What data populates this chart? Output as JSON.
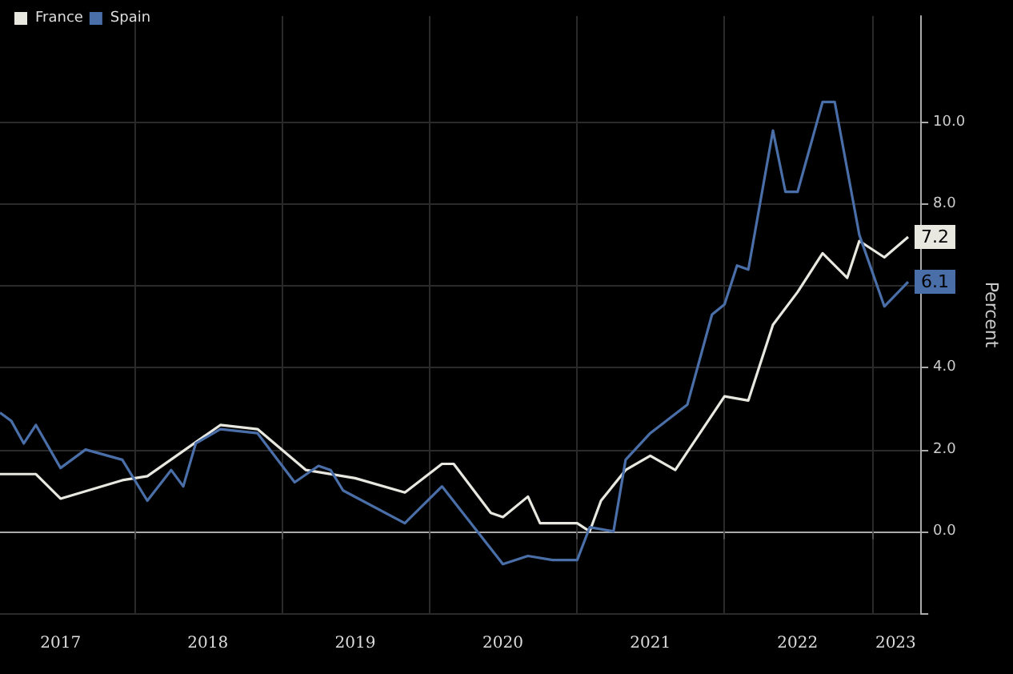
{
  "chart_data": {
    "type": "line",
    "ylabel": "Percent",
    "xlim": [
      "2017-02",
      "2023-05"
    ],
    "xticks": [
      {
        "value": "2017-07",
        "label": "2017"
      },
      {
        "value": "2018-01",
        "label": null
      },
      {
        "value": "2018-07",
        "label": "2018"
      },
      {
        "value": "2019-01",
        "label": null
      },
      {
        "value": "2019-07",
        "label": "2019"
      },
      {
        "value": "2020-01",
        "label": null
      },
      {
        "value": "2020-07",
        "label": "2020"
      },
      {
        "value": "2021-01",
        "label": null
      },
      {
        "value": "2021-07",
        "label": "2021"
      },
      {
        "value": "2022-01",
        "label": null
      },
      {
        "value": "2022-07",
        "label": "2022"
      },
      {
        "value": "2023-01",
        "label": null
      },
      {
        "value": "2023-03",
        "label": "2023"
      }
    ],
    "ylim": [
      -2,
      12.6
    ],
    "yticks": [
      {
        "value": -2,
        "label": null
      },
      {
        "value": 0,
        "label": "0.0"
      },
      {
        "value": 2,
        "label": "2.0"
      },
      {
        "value": 4,
        "label": "4.0"
      },
      {
        "value": 6,
        "label": null
      },
      {
        "value": 8,
        "label": "8.0"
      },
      {
        "value": 10,
        "label": "10.0"
      }
    ],
    "grid": true,
    "legend": "top left",
    "marker": "none",
    "line_style": "solid",
    "series": [
      {
        "name": "France",
        "color": "#e8e8e0",
        "x": [
          "2017-02",
          "2017-05",
          "2017-07",
          "2017-12",
          "2018-02",
          "2018-08",
          "2018-11",
          "2019-03",
          "2019-07",
          "2019-11",
          "2020-02",
          "2020-03",
          "2020-06",
          "2020-07",
          "2020-09",
          "2020-10",
          "2021-01",
          "2021-02",
          "2021-03",
          "2021-05",
          "2021-07",
          "2021-09",
          "2022-01",
          "2022-03",
          "2022-05",
          "2022-07",
          "2022-09",
          "2022-11",
          "2022-12",
          "2023-02",
          "2023-04"
        ],
        "values": [
          1.4,
          1.4,
          0.8,
          1.25,
          1.35,
          2.6,
          2.5,
          1.5,
          1.3,
          0.95,
          1.65,
          1.65,
          0.45,
          0.35,
          0.85,
          0.2,
          0.2,
          0,
          0.75,
          1.5,
          1.85,
          1.5,
          3.3,
          3.2,
          5.05,
          5.85,
          6.8,
          6.2,
          7.1,
          6.7,
          7.2
        ],
        "value_labels": [
          null,
          null,
          null,
          null,
          null,
          null,
          null,
          null,
          null,
          null,
          null,
          null,
          null,
          null,
          null,
          null,
          null,
          null,
          null,
          null,
          null,
          null,
          null,
          null,
          null,
          null,
          null,
          null,
          null,
          null,
          "7.2"
        ]
      },
      {
        "name": "Spain",
        "color": "#4a6fa8",
        "x": [
          "2017-02",
          "2017-03",
          "2017-04",
          "2017-05",
          "2017-07",
          "2017-09",
          "2017-12",
          "2018-02",
          "2018-04",
          "2018-05",
          "2018-06",
          "2018-08",
          "2018-11",
          "2019-02",
          "2019-04",
          "2019-05",
          "2019-06",
          "2019-11",
          "2020-02",
          "2020-07",
          "2020-09",
          "2020-11",
          "2021-01",
          "2021-02",
          "2021-04",
          "2021-05",
          "2021-07",
          "2021-10",
          "2021-12",
          "2022-01",
          "2022-02",
          "2022-03",
          "2022-05",
          "2022-06",
          "2022-07",
          "2022-09",
          "2022-10",
          "2022-12",
          "2023-02",
          "2023-04"
        ],
        "values": [
          2.9,
          2.7,
          2.15,
          2.6,
          1.55,
          2.0,
          1.75,
          0.75,
          1.5,
          1.1,
          2.15,
          2.5,
          2.4,
          1.2,
          1.6,
          1.5,
          1.0,
          0.2,
          1.1,
          -0.8,
          -0.6,
          -0.7,
          -0.7,
          0.1,
          0,
          1.75,
          2.4,
          3.1,
          5.3,
          5.55,
          6.5,
          6.4,
          9.8,
          8.3,
          8.3,
          10.5,
          10.5,
          7.25,
          5.5,
          6.1
        ],
        "value_labels": [
          null,
          null,
          null,
          null,
          null,
          null,
          null,
          null,
          null,
          null,
          null,
          null,
          null,
          null,
          null,
          null,
          null,
          null,
          null,
          null,
          null,
          null,
          null,
          null,
          null,
          null,
          null,
          null,
          null,
          null,
          null,
          null,
          null,
          null,
          null,
          null,
          null,
          null,
          null,
          "6.1"
        ]
      }
    ]
  }
}
